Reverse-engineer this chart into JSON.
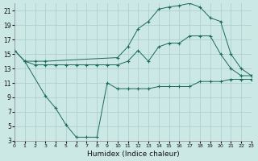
{
  "xlabel": "Humidex (Indice chaleur)",
  "bg_color": "#cce8e4",
  "grid_color": "#aacccc",
  "line_color": "#1a6b5a",
  "x_min": 0,
  "x_max": 23,
  "y_min": 3,
  "y_max": 22,
  "yticks": [
    3,
    5,
    7,
    9,
    11,
    13,
    15,
    17,
    19,
    21
  ],
  "xticks": [
    0,
    1,
    2,
    3,
    4,
    5,
    6,
    7,
    8,
    9,
    10,
    11,
    12,
    13,
    14,
    15,
    16,
    17,
    18,
    19,
    20,
    21,
    22,
    23
  ],
  "curve_top_x": [
    0,
    1,
    2,
    3,
    10,
    11,
    12,
    13,
    14,
    15,
    16,
    17,
    18,
    19,
    20,
    21,
    22,
    23
  ],
  "curve_top_y": [
    15.5,
    14.0,
    14.0,
    14.0,
    14.5,
    16.0,
    18.5,
    19.5,
    21.2,
    21.5,
    21.7,
    22.0,
    21.5,
    20.0,
    19.5,
    15.0,
    13.0,
    12.0
  ],
  "curve_mid_x": [
    0,
    1,
    2,
    3,
    4,
    5,
    6,
    7,
    8,
    9,
    10,
    11,
    12,
    13,
    14,
    15,
    16,
    17,
    18,
    19,
    20,
    21,
    22,
    23
  ],
  "curve_mid_y": [
    15.5,
    14.0,
    13.5,
    13.5,
    13.5,
    13.5,
    13.5,
    13.5,
    13.5,
    13.5,
    13.5,
    14.0,
    15.5,
    14.0,
    16.0,
    16.5,
    16.5,
    17.5,
    17.5,
    17.5,
    15.0,
    13.0,
    12.0,
    12.0
  ],
  "curve_bot_x": [
    1,
    3,
    4,
    5,
    6,
    7,
    8,
    9,
    10,
    11,
    12,
    13,
    14,
    15,
    16,
    17,
    18,
    19,
    20,
    21,
    22,
    23
  ],
  "curve_bot_y": [
    14.0,
    9.2,
    7.5,
    5.2,
    3.5,
    3.5,
    3.5,
    11.0,
    10.2,
    10.2,
    10.2,
    10.2,
    10.5,
    10.5,
    10.5,
    10.5,
    11.2,
    11.2,
    11.2,
    11.5,
    11.5,
    11.5
  ]
}
